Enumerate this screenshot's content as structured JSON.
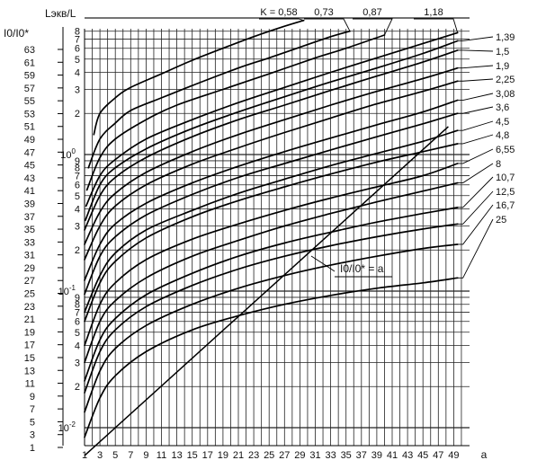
{
  "chart_data": {
    "type": "line",
    "title": "",
    "xlabel": "a",
    "ylabel_left": "I0/I0*",
    "ylabel_right": "Lэкв/L",
    "x_ticks": [
      "1",
      "3",
      "5",
      "7",
      "9",
      "11",
      "13",
      "15",
      "17",
      "19",
      "21",
      "23",
      "25",
      "27",
      "29",
      "31",
      "33",
      "35",
      "37",
      "39",
      "41",
      "43",
      "45",
      "47",
      "49"
    ],
    "left_ticks": [
      "1",
      "3",
      "5",
      "7",
      "9",
      "11",
      "13",
      "15",
      "17",
      "19",
      "21",
      "23",
      "25",
      "27",
      "29",
      "31",
      "33",
      "35",
      "37",
      "39",
      "41",
      "43",
      "45",
      "47",
      "49",
      "51",
      "53",
      "55",
      "57",
      "59",
      "61",
      "63"
    ],
    "log_decades": [
      "10-2",
      "10-1",
      "100"
    ],
    "log_minor": [
      "2",
      "3",
      "4",
      "5",
      "6",
      "7",
      "8",
      "9"
    ],
    "xlim": [
      1,
      50
    ],
    "ylim_log": [
      0.006,
      10
    ],
    "k_labels_top": [
      "K = 0,58",
      "0,73",
      "0,87",
      "1,18"
    ],
    "k_labels_right": [
      "1,39",
      "1,5",
      "1,9",
      "2,25",
      "3,08",
      "3,6",
      "4,5",
      "4,8",
      "6,55",
      "8",
      "10,7",
      "12,5",
      "16,7",
      "25"
    ],
    "diagonal_label": "I0/I0* = a",
    "diagonal": {
      "x": [
        1,
        48.3
      ],
      "y": [
        0.00625,
        1.6
      ]
    },
    "series": [
      {
        "name": "K = 0,58",
        "x": [
          2.2,
          3,
          5,
          7,
          11,
          15,
          19,
          23,
          27,
          29.5
        ],
        "y": [
          1.4,
          2.0,
          2.6,
          3.1,
          3.9,
          4.9,
          6.0,
          7.3,
          8.7,
          9.6
        ]
      },
      {
        "name": "0,73",
        "x": [
          1.5,
          3,
          5,
          7,
          11,
          15,
          21,
          25,
          29,
          33,
          35.5
        ],
        "y": [
          0.8,
          1.3,
          1.7,
          2.1,
          2.6,
          3.2,
          4.3,
          5.1,
          6.1,
          7.3,
          8.0
        ]
      },
      {
        "name": "0,87",
        "x": [
          1.3,
          3,
          5,
          9,
          13,
          19,
          25,
          31,
          35,
          40
        ],
        "y": [
          0.55,
          0.95,
          1.3,
          1.8,
          2.3,
          3.0,
          3.9,
          5.1,
          6.0,
          7.5
        ]
      },
      {
        "name": "1,18",
        "x": [
          1.2,
          3,
          5,
          9,
          15,
          21,
          27,
          33,
          39,
          45,
          49.5
        ],
        "y": [
          0.42,
          0.7,
          0.92,
          1.3,
          1.8,
          2.4,
          3.1,
          4.0,
          5.1,
          6.5,
          7.8
        ]
      },
      {
        "name": "1,39",
        "x": [
          1.1,
          3,
          5,
          9,
          15,
          21,
          27,
          33,
          39,
          45,
          49.5
        ],
        "y": [
          0.33,
          0.6,
          0.8,
          1.1,
          1.55,
          2.05,
          2.65,
          3.4,
          4.3,
          5.5,
          6.8
        ]
      },
      {
        "name": "1,5",
        "x": [
          1,
          3,
          5,
          9,
          15,
          21,
          27,
          33,
          39,
          45,
          49.5
        ],
        "y": [
          0.28,
          0.5,
          0.68,
          0.95,
          1.35,
          1.8,
          2.3,
          2.95,
          3.75,
          4.75,
          5.8
        ]
      },
      {
        "name": "1,9",
        "x": [
          1,
          3,
          5,
          9,
          15,
          21,
          27,
          33,
          39,
          45,
          49.5
        ],
        "y": [
          0.22,
          0.38,
          0.52,
          0.74,
          1.05,
          1.4,
          1.8,
          2.3,
          2.9,
          3.6,
          4.3
        ]
      },
      {
        "name": "2,25",
        "x": [
          1,
          3,
          5,
          9,
          15,
          21,
          27,
          33,
          39,
          45,
          49.5
        ],
        "y": [
          0.17,
          0.3,
          0.42,
          0.6,
          0.85,
          1.12,
          1.45,
          1.85,
          2.35,
          2.9,
          3.45
        ]
      },
      {
        "name": "3,08",
        "x": [
          1,
          3,
          5,
          9,
          15,
          21,
          27,
          33,
          39,
          45,
          49.5
        ],
        "y": [
          0.12,
          0.22,
          0.31,
          0.44,
          0.62,
          0.82,
          1.05,
          1.32,
          1.65,
          2.05,
          2.5
        ]
      },
      {
        "name": "3,6",
        "x": [
          1,
          3,
          5,
          9,
          15,
          21,
          27,
          33,
          39,
          45,
          49.5
        ],
        "y": [
          0.095,
          0.18,
          0.25,
          0.36,
          0.51,
          0.68,
          0.86,
          1.08,
          1.35,
          1.68,
          2.0
        ]
      },
      {
        "name": "4,5",
        "x": [
          1,
          3,
          5,
          9,
          15,
          21,
          27,
          33,
          39,
          45,
          49.5
        ],
        "y": [
          0.07,
          0.13,
          0.19,
          0.28,
          0.39,
          0.52,
          0.66,
          0.83,
          1.02,
          1.25,
          1.5
        ]
      },
      {
        "name": "4,8",
        "x": [
          1,
          3,
          5,
          9,
          15,
          21,
          27,
          33,
          39,
          45,
          49.5
        ],
        "y": [
          0.06,
          0.115,
          0.165,
          0.245,
          0.35,
          0.46,
          0.58,
          0.72,
          0.88,
          1.05,
          1.2
        ]
      },
      {
        "name": "6,55",
        "x": [
          1,
          3,
          5,
          9,
          15,
          21,
          27,
          33,
          39,
          45,
          49.5
        ],
        "y": [
          0.04,
          0.08,
          0.115,
          0.17,
          0.24,
          0.31,
          0.39,
          0.48,
          0.58,
          0.7,
          0.86
        ]
      },
      {
        "name": "8",
        "x": [
          1,
          3,
          5,
          9,
          15,
          21,
          27,
          33,
          39,
          45,
          49.5
        ],
        "y": [
          0.03,
          0.06,
          0.085,
          0.125,
          0.18,
          0.235,
          0.3,
          0.37,
          0.45,
          0.54,
          0.62
        ]
      },
      {
        "name": "10,7",
        "x": [
          1,
          3,
          5,
          9,
          15,
          21,
          27,
          33,
          39,
          45,
          49.5
        ],
        "y": [
          0.022,
          0.044,
          0.063,
          0.094,
          0.135,
          0.18,
          0.225,
          0.27,
          0.32,
          0.37,
          0.41
        ]
      },
      {
        "name": "12,5",
        "x": [
          1,
          3,
          5,
          9,
          15,
          21,
          27,
          33,
          39,
          45,
          49.5
        ],
        "y": [
          0.018,
          0.036,
          0.052,
          0.077,
          0.11,
          0.145,
          0.18,
          0.215,
          0.25,
          0.285,
          0.31
        ]
      },
      {
        "name": "16,7",
        "x": [
          1,
          3,
          5,
          9,
          15,
          21,
          27,
          33,
          39,
          45,
          49.5
        ],
        "y": [
          0.013,
          0.026,
          0.038,
          0.056,
          0.08,
          0.105,
          0.13,
          0.155,
          0.18,
          0.205,
          0.22
        ]
      },
      {
        "name": "25",
        "x": [
          1,
          3,
          5,
          9,
          15,
          21,
          27,
          33,
          39,
          45,
          49.5
        ],
        "y": [
          0.0085,
          0.0165,
          0.024,
          0.036,
          0.052,
          0.066,
          0.08,
          0.093,
          0.105,
          0.115,
          0.125
        ]
      }
    ]
  }
}
